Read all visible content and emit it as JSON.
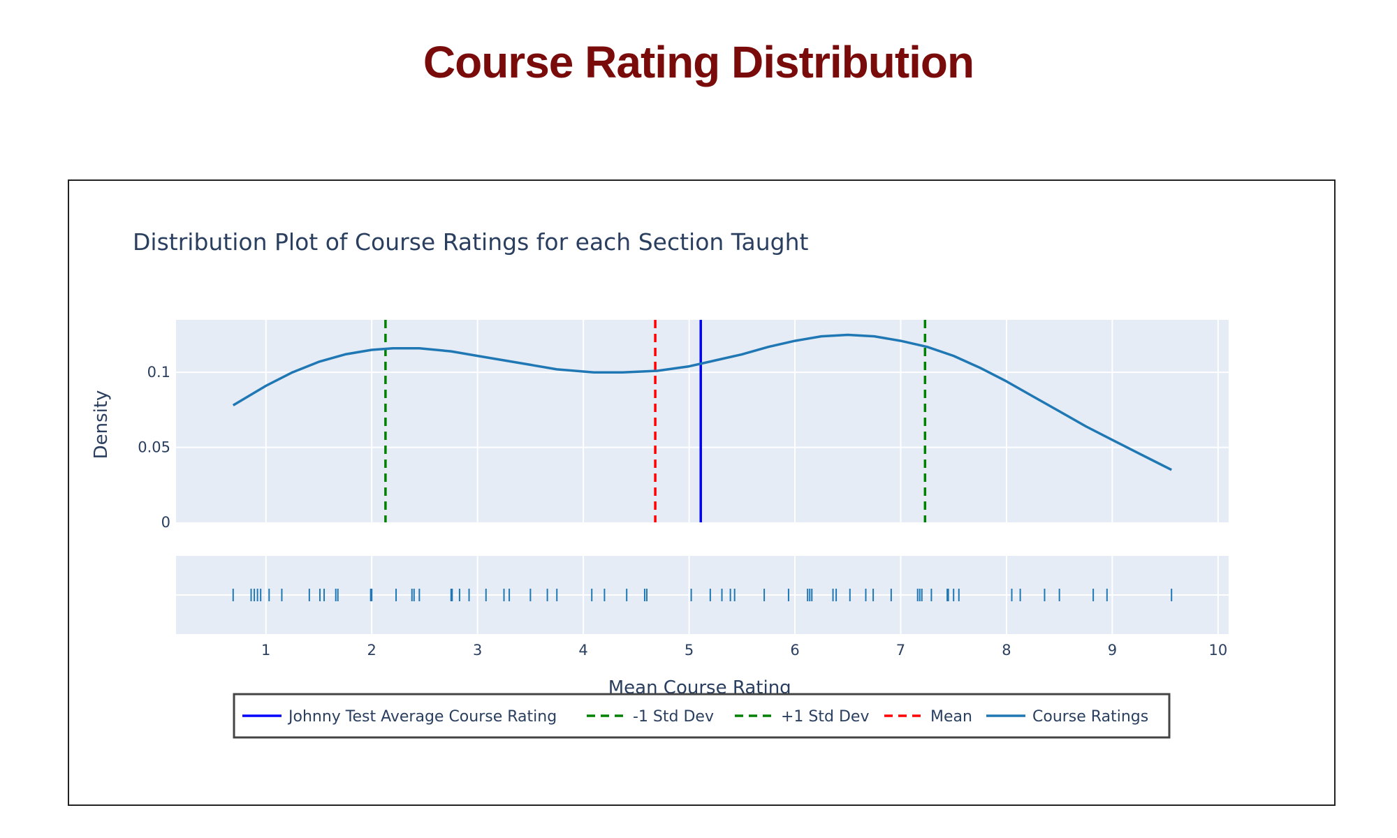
{
  "page_title": "Course Rating Distribution",
  "chart_data": {
    "type": "line",
    "title": "Distribution Plot of Course Ratings for each Section Taught",
    "xlabel": "Mean Course Rating",
    "ylabel": "Density",
    "xlim": [
      0.15,
      10.1
    ],
    "ylim": [
      0,
      0.135
    ],
    "xticks": [
      1,
      2,
      3,
      4,
      5,
      6,
      7,
      8,
      9,
      10
    ],
    "yticks": [
      {
        "value": 0,
        "label": "0"
      },
      {
        "value": 0.05,
        "label": "0.05"
      },
      {
        "value": 0.1,
        "label": "0.1"
      }
    ],
    "grid": true,
    "colors": {
      "title": "#7a0b0b",
      "plot_bg": "#e5ecf6",
      "grid": "#ffffff",
      "axis_text": "#2a3f5f",
      "kde": "#1f77b4",
      "johnny": "#0000ff",
      "std": "#008000",
      "mean": "#ff0000"
    },
    "series": [
      {
        "name": "Course Ratings",
        "color": "#1f77b4",
        "x": [
          0.69,
          1.0,
          1.25,
          1.5,
          1.75,
          2.0,
          2.2,
          2.45,
          2.75,
          3.0,
          3.25,
          3.5,
          3.75,
          4.1,
          4.37,
          4.7,
          5.0,
          5.25,
          5.5,
          5.75,
          6.0,
          6.25,
          6.5,
          6.75,
          7.0,
          7.25,
          7.5,
          7.75,
          8.0,
          8.25,
          8.5,
          8.75,
          9.0,
          9.25,
          9.56
        ],
        "y": [
          0.078,
          0.091,
          0.1,
          0.107,
          0.112,
          0.115,
          0.116,
          0.116,
          0.114,
          0.111,
          0.108,
          0.105,
          0.102,
          0.1,
          0.1,
          0.101,
          0.104,
          0.108,
          0.112,
          0.117,
          0.121,
          0.124,
          0.125,
          0.124,
          0.121,
          0.117,
          0.111,
          0.103,
          0.094,
          0.084,
          0.074,
          0.064,
          0.055,
          0.046,
          0.035
        ]
      }
    ],
    "vlines": [
      {
        "name": "Johnny Test Average Course Rating",
        "x": 5.11,
        "color": "#0000ff",
        "dash": "solid"
      },
      {
        "name": "-1 Std Dev",
        "x": 2.13,
        "color": "#008000",
        "dash": "dash"
      },
      {
        "name": "+1 Std Dev",
        "x": 7.23,
        "color": "#008000",
        "dash": "dash"
      },
      {
        "name": "Mean",
        "x": 4.68,
        "color": "#ff0000",
        "dash": "dash"
      }
    ],
    "rug": [
      0.69,
      0.86,
      0.89,
      0.92,
      0.95,
      1.03,
      1.15,
      1.41,
      1.51,
      1.55,
      1.66,
      1.68,
      1.99,
      2.0,
      2.23,
      2.38,
      2.4,
      2.45,
      2.75,
      2.76,
      2.83,
      2.92,
      3.08,
      3.25,
      3.3,
      3.5,
      3.66,
      3.75,
      4.08,
      4.2,
      4.41,
      4.58,
      4.6,
      5.02,
      5.2,
      5.31,
      5.39,
      5.43,
      5.71,
      5.94,
      6.12,
      6.14,
      6.16,
      6.36,
      6.39,
      6.52,
      6.67,
      6.74,
      6.91,
      7.16,
      7.18,
      7.2,
      7.29,
      7.44,
      7.45,
      7.5,
      7.55,
      8.05,
      8.13,
      8.36,
      8.5,
      8.82,
      8.95,
      9.56
    ],
    "legend": {
      "position": "bottom-center",
      "items": [
        {
          "label": "Johnny Test Average Course Rating",
          "color": "#0000ff",
          "dash": "solid"
        },
        {
          "label": "-1 Std Dev",
          "color": "#008000",
          "dash": "dash"
        },
        {
          "label": "+1 Std Dev",
          "color": "#008000",
          "dash": "dash"
        },
        {
          "label": "Mean",
          "color": "#ff0000",
          "dash": "dash"
        },
        {
          "label": "Course Ratings",
          "color": "#1f77b4",
          "dash": "solid"
        }
      ]
    }
  }
}
